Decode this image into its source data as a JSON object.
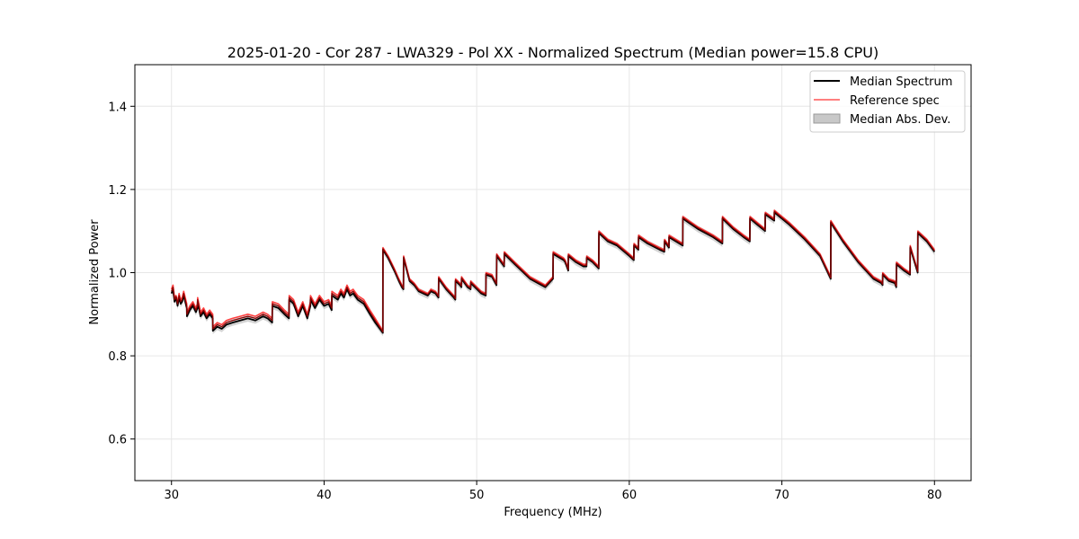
{
  "chart_data": {
    "type": "line",
    "title": "2025-01-20 - Cor 287 - LWA329 - Pol XX - Normalized Spectrum (Median power=15.8 CPU)",
    "xlabel": "Frequency (MHz)",
    "ylabel": "Normalized Power",
    "xlim": [
      27.6,
      82.4
    ],
    "ylim": [
      0.5,
      1.5
    ],
    "xticks": [
      30,
      40,
      50,
      60,
      70,
      80
    ],
    "yticks": [
      0.6,
      0.8,
      1.0,
      1.2,
      1.4
    ],
    "xtick_labels": [
      "30",
      "40",
      "50",
      "60",
      "70",
      "80"
    ],
    "ytick_labels": [
      "0.6",
      "0.8",
      "1.0",
      "1.2",
      "1.4"
    ],
    "grid": true,
    "legend_position": "top-right",
    "mad_halfwidth": 0.008,
    "series": [
      {
        "name": "Median Spectrum",
        "color": "#000000",
        "role": "line"
      },
      {
        "name": "Reference spec",
        "color": "#ff5555",
        "role": "line"
      },
      {
        "name": "Median Abs. Dev.",
        "color": "#bbbbbb",
        "role": "band"
      }
    ],
    "x": [
      30.0,
      30.1,
      30.2,
      30.3,
      30.4,
      30.5,
      30.6,
      30.7,
      30.8,
      30.9,
      31.0,
      31.01,
      31.2,
      31.4,
      31.6,
      31.7,
      31.71,
      31.9,
      32.1,
      32.3,
      32.5,
      32.7,
      32.71,
      33.0,
      33.3,
      33.6,
      34.0,
      34.5,
      35.0,
      35.5,
      36.0,
      36.3,
      36.6,
      36.61,
      37.0,
      37.4,
      37.7,
      37.71,
      38.0,
      38.3,
      38.6,
      38.9,
      39.1,
      39.11,
      39.4,
      39.7,
      40.0,
      40.3,
      40.5,
      40.51,
      40.9,
      41.1,
      41.3,
      41.5,
      41.7,
      41.9,
      42.2,
      42.6,
      43.0,
      43.35,
      43.85,
      43.86,
      44.2,
      44.6,
      44.9,
      45.1,
      45.2,
      45.21,
      45.6,
      45.9,
      46.2,
      46.5,
      46.8,
      47.0,
      47.3,
      47.5,
      47.51,
      48.0,
      48.5,
      48.6,
      48.61,
      48.9,
      49.0,
      49.01,
      49.4,
      49.6,
      49.61,
      50.3,
      50.6,
      50.61,
      51.0,
      51.3,
      51.31,
      51.6,
      51.8,
      51.81,
      52.5,
      53.5,
      54.5,
      55.0,
      55.01,
      55.7,
      55.8,
      56.0,
      56.01,
      56.5,
      57.0,
      57.2,
      57.21,
      57.6,
      58.0,
      58.01,
      58.6,
      59.2,
      60.0,
      60.3,
      60.31,
      60.6,
      60.61,
      61.2,
      62.0,
      62.3,
      62.31,
      62.6,
      62.61,
      63.5,
      63.51,
      64.5,
      65.5,
      66.1,
      66.11,
      66.8,
      67.5,
      67.9,
      67.91,
      68.4,
      68.9,
      68.91,
      69.3,
      69.5,
      69.51,
      70.5,
      71.5,
      72.5,
      73.2,
      73.21,
      74.0,
      75.0,
      76.0,
      76.5,
      76.6,
      76.61,
      77.0,
      77.4,
      77.5,
      77.51,
      78.0,
      78.4,
      78.41,
      78.9,
      78.91,
      79.5,
      80.0
    ],
    "ref": [
      0.96,
      0.97,
      0.94,
      0.945,
      0.93,
      0.95,
      0.935,
      0.94,
      0.955,
      0.94,
      0.925,
      0.905,
      0.92,
      0.93,
      0.915,
      0.925,
      0.94,
      0.905,
      0.915,
      0.9,
      0.91,
      0.9,
      0.87,
      0.88,
      0.875,
      0.885,
      0.89,
      0.895,
      0.9,
      0.895,
      0.905,
      0.9,
      0.89,
      0.93,
      0.925,
      0.91,
      0.9,
      0.945,
      0.935,
      0.905,
      0.93,
      0.9,
      0.93,
      0.945,
      0.925,
      0.945,
      0.93,
      0.935,
      0.92,
      0.955,
      0.945,
      0.96,
      0.95,
      0.97,
      0.955,
      0.96,
      0.945,
      0.935,
      0.91,
      0.89,
      0.86,
      1.06,
      1.04,
      1.01,
      0.985,
      0.97,
      0.965,
      1.04,
      0.985,
      0.975,
      0.96,
      0.955,
      0.95,
      0.96,
      0.955,
      0.945,
      0.99,
      0.965,
      0.945,
      0.94,
      0.985,
      0.975,
      0.97,
      0.99,
      0.97,
      0.965,
      0.98,
      0.955,
      0.95,
      1.0,
      0.995,
      0.975,
      1.045,
      1.03,
      1.02,
      1.05,
      1.025,
      0.99,
      0.97,
      0.99,
      1.05,
      1.035,
      1.03,
      1.01,
      1.045,
      1.03,
      1.02,
      1.02,
      1.04,
      1.03,
      1.015,
      1.1,
      1.08,
      1.07,
      1.045,
      1.035,
      1.07,
      1.06,
      1.09,
      1.075,
      1.06,
      1.055,
      1.08,
      1.065,
      1.09,
      1.07,
      1.135,
      1.11,
      1.09,
      1.075,
      1.135,
      1.11,
      1.09,
      1.08,
      1.135,
      1.12,
      1.105,
      1.145,
      1.135,
      1.13,
      1.15,
      1.12,
      1.085,
      1.045,
      0.99,
      1.125,
      1.08,
      1.03,
      0.99,
      0.98,
      0.975,
      1.0,
      0.985,
      0.98,
      0.97,
      1.025,
      1.01,
      1.0,
      1.065,
      1.005,
      1.1,
      1.08,
      1.055
    ],
    "median": [
      0.95,
      0.96,
      0.93,
      0.94,
      0.92,
      0.94,
      0.925,
      0.93,
      0.945,
      0.93,
      0.915,
      0.895,
      0.91,
      0.92,
      0.905,
      0.915,
      0.93,
      0.895,
      0.905,
      0.89,
      0.9,
      0.89,
      0.86,
      0.87,
      0.865,
      0.875,
      0.88,
      0.885,
      0.89,
      0.885,
      0.895,
      0.89,
      0.88,
      0.92,
      0.915,
      0.9,
      0.89,
      0.935,
      0.925,
      0.895,
      0.92,
      0.89,
      0.92,
      0.935,
      0.915,
      0.935,
      0.92,
      0.925,
      0.91,
      0.945,
      0.935,
      0.95,
      0.94,
      0.96,
      0.945,
      0.95,
      0.935,
      0.925,
      0.9,
      0.88,
      0.855,
      1.055,
      1.035,
      1.005,
      0.98,
      0.965,
      0.96,
      1.035,
      0.98,
      0.97,
      0.955,
      0.95,
      0.945,
      0.955,
      0.95,
      0.94,
      0.985,
      0.96,
      0.94,
      0.935,
      0.98,
      0.97,
      0.965,
      0.985,
      0.965,
      0.96,
      0.975,
      0.95,
      0.945,
      0.995,
      0.99,
      0.97,
      1.04,
      1.025,
      1.015,
      1.045,
      1.02,
      0.985,
      0.965,
      0.985,
      1.045,
      1.03,
      1.025,
      1.005,
      1.04,
      1.025,
      1.015,
      1.015,
      1.035,
      1.025,
      1.01,
      1.095,
      1.075,
      1.065,
      1.04,
      1.03,
      1.065,
      1.055,
      1.085,
      1.07,
      1.055,
      1.05,
      1.075,
      1.06,
      1.085,
      1.065,
      1.13,
      1.105,
      1.085,
      1.07,
      1.13,
      1.105,
      1.085,
      1.075,
      1.13,
      1.115,
      1.1,
      1.14,
      1.13,
      1.125,
      1.145,
      1.115,
      1.08,
      1.04,
      0.985,
      1.12,
      1.075,
      1.025,
      0.985,
      0.975,
      0.97,
      0.995,
      0.98,
      0.975,
      0.965,
      1.02,
      1.005,
      0.995,
      1.06,
      1.0,
      1.095,
      1.075,
      1.05
    ]
  }
}
